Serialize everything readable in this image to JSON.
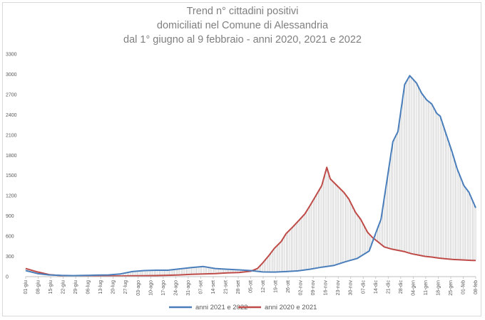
{
  "chart_data": {
    "type": "line",
    "title_lines": [
      "Trend n° cittadini positivi",
      "domiciliati nel Comune di Alessandria",
      "dal 1° giugno al 9 febbraio - anni 2020, 2021 e 2022"
    ],
    "ylim": [
      0,
      3300
    ],
    "yticks": [
      "0",
      "300",
      "600",
      "900",
      "1200",
      "1500",
      "1800",
      "2100",
      "2400",
      "2700",
      "3000",
      "3300"
    ],
    "xticks": [
      "01-giu",
      "08-giu",
      "15-giu",
      "22-giu",
      "29-giu",
      "06-lug",
      "13-lug",
      "20-lug",
      "27-lug",
      "03-ago",
      "10-ago",
      "17-ago",
      "24-ago",
      "31-ago",
      "07-set",
      "14-set",
      "21-set",
      "28-set",
      "05-ott",
      "12-ott",
      "19-ott",
      "26-ott",
      "02-nov",
      "09-nov",
      "16-nov",
      "23-nov",
      "30-nov",
      "07-dic",
      "14-dic",
      "21-dic",
      "28-dic",
      "04-gen",
      "11-gen",
      "18-gen",
      "25-gen",
      "01-feb",
      "08-feb"
    ],
    "grid": false,
    "legend_position": "bottom",
    "series": [
      {
        "name": "anni 2021 e 2022",
        "color": "#4a7ebb",
        "points": [
          [
            0,
            90
          ],
          [
            7,
            45
          ],
          [
            14,
            25
          ],
          [
            21,
            18
          ],
          [
            28,
            15
          ],
          [
            35,
            18
          ],
          [
            42,
            22
          ],
          [
            49,
            25
          ],
          [
            56,
            40
          ],
          [
            63,
            75
          ],
          [
            70,
            90
          ],
          [
            77,
            95
          ],
          [
            84,
            95
          ],
          [
            91,
            115
          ],
          [
            98,
            135
          ],
          [
            105,
            150
          ],
          [
            112,
            120
          ],
          [
            119,
            110
          ],
          [
            126,
            100
          ],
          [
            133,
            90
          ],
          [
            140,
            70
          ],
          [
            147,
            68
          ],
          [
            154,
            75
          ],
          [
            161,
            85
          ],
          [
            168,
            110
          ],
          [
            175,
            140
          ],
          [
            182,
            165
          ],
          [
            189,
            220
          ],
          [
            196,
            270
          ],
          [
            203,
            380
          ],
          [
            207,
            650
          ],
          [
            210,
            850
          ],
          [
            214,
            1500
          ],
          [
            217,
            2000
          ],
          [
            220,
            2150
          ],
          [
            224,
            2850
          ],
          [
            227,
            2980
          ],
          [
            231,
            2870
          ],
          [
            234,
            2720
          ],
          [
            237,
            2620
          ],
          [
            240,
            2560
          ],
          [
            243,
            2420
          ],
          [
            245,
            2380
          ],
          [
            248,
            2150
          ],
          [
            252,
            1850
          ],
          [
            255,
            1600
          ],
          [
            259,
            1350
          ],
          [
            262,
            1250
          ],
          [
            266,
            1020
          ]
        ]
      },
      {
        "name": "anni 2020 e 2021",
        "color": "#be4b48",
        "points": [
          [
            0,
            120
          ],
          [
            7,
            70
          ],
          [
            14,
            30
          ],
          [
            21,
            15
          ],
          [
            28,
            10
          ],
          [
            35,
            8
          ],
          [
            42,
            6
          ],
          [
            49,
            10
          ],
          [
            56,
            10
          ],
          [
            63,
            12
          ],
          [
            70,
            14
          ],
          [
            77,
            16
          ],
          [
            84,
            20
          ],
          [
            91,
            25
          ],
          [
            98,
            35
          ],
          [
            105,
            40
          ],
          [
            112,
            45
          ],
          [
            119,
            55
          ],
          [
            126,
            60
          ],
          [
            133,
            80
          ],
          [
            137,
            120
          ],
          [
            140,
            200
          ],
          [
            144,
            320
          ],
          [
            147,
            420
          ],
          [
            151,
            520
          ],
          [
            154,
            640
          ],
          [
            158,
            740
          ],
          [
            161,
            820
          ],
          [
            165,
            930
          ],
          [
            168,
            1050
          ],
          [
            172,
            1220
          ],
          [
            175,
            1350
          ],
          [
            178,
            1620
          ],
          [
            180,
            1450
          ],
          [
            184,
            1350
          ],
          [
            188,
            1250
          ],
          [
            191,
            1150
          ],
          [
            195,
            950
          ],
          [
            198,
            850
          ],
          [
            202,
            660
          ],
          [
            205,
            580
          ],
          [
            209,
            500
          ],
          [
            212,
            440
          ],
          [
            216,
            410
          ],
          [
            220,
            390
          ],
          [
            224,
            370
          ],
          [
            228,
            340
          ],
          [
            232,
            320
          ],
          [
            236,
            300
          ],
          [
            240,
            290
          ],
          [
            244,
            275
          ],
          [
            248,
            265
          ],
          [
            252,
            255
          ],
          [
            256,
            250
          ],
          [
            260,
            245
          ],
          [
            264,
            240
          ],
          [
            266,
            240
          ]
        ]
      }
    ]
  }
}
